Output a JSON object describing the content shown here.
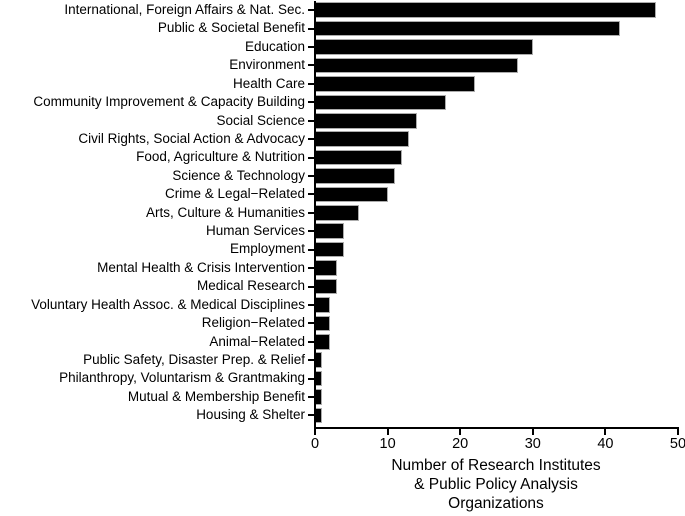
{
  "chart_data": {
    "type": "bar",
    "orientation": "horizontal",
    "title": "",
    "xlabel_lines": [
      "Number of Research Institutes",
      "& Public Policy Analysis",
      "Organizations"
    ],
    "ylabel": "",
    "categories": [
      "International, Foreign Affairs & Nat. Sec.",
      "Public & Societal Benefit",
      "Education",
      "Environment",
      "Health Care",
      "Community Improvement & Capacity Building",
      "Social Science",
      "Civil Rights, Social Action & Advocacy",
      "Food, Agriculture & Nutrition",
      "Science & Technology",
      "Crime & Legal−Related",
      "Arts, Culture & Humanities",
      "Human Services",
      "Employment",
      "Mental Health & Crisis Intervention",
      "Medical Research",
      "Voluntary Health Assoc. & Medical Disciplines",
      "Religion−Related",
      "Animal−Related",
      "Public Safety, Disaster Prep. & Relief",
      "Philanthropy, Voluntarism & Grantmaking",
      "Mutual & Membership Benefit",
      "Housing & Shelter"
    ],
    "values": [
      47,
      42,
      30,
      28,
      22,
      18,
      14,
      13,
      12,
      11,
      10,
      6,
      4,
      4,
      3,
      3,
      2,
      2,
      2,
      1,
      1,
      1,
      1
    ],
    "x_ticks": [
      0,
      10,
      20,
      30,
      40,
      50
    ],
    "xlim": [
      0,
      50
    ],
    "grid": false,
    "legend": "none",
    "bar_color": "#000000",
    "bar_border_color": "#ababab",
    "axis_color": "#000000",
    "text_color": "#000000",
    "background_color": "#ffffff"
  }
}
